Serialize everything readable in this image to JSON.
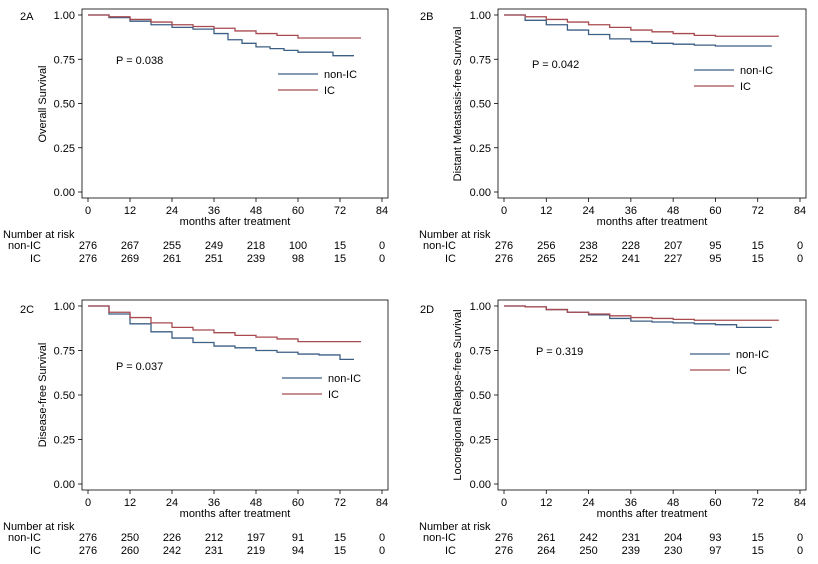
{
  "figure": {
    "colors": {
      "non_ic": "#3c5f86",
      "ic": "#a84a4f",
      "axis": "#000000"
    }
  },
  "risk_table": {
    "header": "Number at risk"
  },
  "chart_data": [
    {
      "type": "line",
      "panel": "2A",
      "ylabel": "Overall Survival",
      "xlabel": "months after treatment",
      "xlim": [
        0,
        84
      ],
      "ylim": [
        0,
        1
      ],
      "xticks": [
        0,
        12,
        24,
        36,
        48,
        60,
        72,
        84
      ],
      "yticks": [
        "0.00",
        "0.25",
        "0.50",
        "0.75",
        "1.00"
      ],
      "p_value": "P = 0.038",
      "legend": [
        "non-IC",
        "IC"
      ],
      "series": [
        {
          "name": "non-IC",
          "x": [
            0,
            6,
            12,
            18,
            24,
            30,
            36,
            40,
            44,
            48,
            52,
            56,
            60,
            66,
            70,
            76
          ],
          "y": [
            1.0,
            0.985,
            0.965,
            0.945,
            0.93,
            0.92,
            0.895,
            0.86,
            0.84,
            0.82,
            0.81,
            0.8,
            0.79,
            0.79,
            0.77,
            0.77
          ]
        },
        {
          "name": "IC",
          "x": [
            0,
            6,
            12,
            18,
            24,
            30,
            36,
            42,
            48,
            54,
            60,
            66,
            72,
            78
          ],
          "y": [
            1.0,
            0.99,
            0.975,
            0.96,
            0.945,
            0.935,
            0.925,
            0.91,
            0.895,
            0.885,
            0.87,
            0.87,
            0.87,
            0.87
          ]
        }
      ],
      "risk": {
        "times": [
          "0",
          "12",
          "24",
          "36",
          "48",
          "60",
          "72",
          "84"
        ],
        "rows": [
          {
            "label": "non-IC",
            "values": [
              "276",
              "267",
              "255",
              "249",
              "218",
              "100",
              "15",
              "0"
            ]
          },
          {
            "label": "IC",
            "values": [
              "276",
              "269",
              "261",
              "251",
              "239",
              "98",
              "15",
              "0"
            ]
          }
        ]
      }
    },
    {
      "type": "line",
      "panel": "2B",
      "ylabel": "Distant Metastasis-free Survival",
      "xlabel": "months after treatment",
      "xlim": [
        0,
        84
      ],
      "ylim": [
        0,
        1
      ],
      "xticks": [
        0,
        12,
        24,
        36,
        48,
        60,
        72,
        84
      ],
      "yticks": [
        "0.00",
        "0.25",
        "0.50",
        "0.75",
        "1.00"
      ],
      "p_value": "P = 0.042",
      "legend": [
        "non-IC",
        "IC"
      ],
      "series": [
        {
          "name": "non-IC",
          "x": [
            0,
            6,
            12,
            18,
            24,
            30,
            36,
            42,
            48,
            54,
            60,
            66,
            72,
            76
          ],
          "y": [
            1.0,
            0.97,
            0.945,
            0.915,
            0.89,
            0.865,
            0.85,
            0.84,
            0.835,
            0.83,
            0.825,
            0.825,
            0.825,
            0.825
          ]
        },
        {
          "name": "IC",
          "x": [
            0,
            6,
            12,
            18,
            24,
            30,
            36,
            42,
            48,
            54,
            60,
            66,
            72,
            78
          ],
          "y": [
            1.0,
            0.99,
            0.975,
            0.96,
            0.945,
            0.93,
            0.915,
            0.905,
            0.895,
            0.885,
            0.88,
            0.88,
            0.88,
            0.88
          ]
        }
      ],
      "risk": {
        "times": [
          "0",
          "12",
          "24",
          "36",
          "48",
          "60",
          "72",
          "84"
        ],
        "rows": [
          {
            "label": "non-IC",
            "values": [
              "276",
              "256",
              "238",
              "228",
              "207",
              "95",
              "15",
              "0"
            ]
          },
          {
            "label": "IC",
            "values": [
              "276",
              "265",
              "252",
              "241",
              "227",
              "95",
              "15",
              "0"
            ]
          }
        ]
      }
    },
    {
      "type": "line",
      "panel": "2C",
      "ylabel": "Disease-free Survival",
      "xlabel": "months after treatment",
      "xlim": [
        0,
        84
      ],
      "ylim": [
        0,
        1
      ],
      "xticks": [
        0,
        12,
        24,
        36,
        48,
        60,
        72,
        84
      ],
      "yticks": [
        "0.00",
        "0.25",
        "0.50",
        "0.75",
        "1.00"
      ],
      "p_value": "P = 0.037",
      "legend": [
        "non-IC",
        "IC"
      ],
      "series": [
        {
          "name": "non-IC",
          "x": [
            0,
            6,
            12,
            18,
            24,
            30,
            36,
            42,
            48,
            54,
            60,
            66,
            72,
            76
          ],
          "y": [
            1.0,
            0.955,
            0.9,
            0.855,
            0.82,
            0.795,
            0.775,
            0.765,
            0.75,
            0.74,
            0.73,
            0.725,
            0.7,
            0.7
          ]
        },
        {
          "name": "IC",
          "x": [
            0,
            6,
            12,
            18,
            24,
            30,
            36,
            42,
            48,
            54,
            60,
            66,
            72,
            78
          ],
          "y": [
            1.0,
            0.965,
            0.935,
            0.905,
            0.88,
            0.865,
            0.85,
            0.835,
            0.825,
            0.815,
            0.8,
            0.8,
            0.8,
            0.8
          ]
        }
      ],
      "risk": {
        "times": [
          "0",
          "12",
          "24",
          "36",
          "48",
          "60",
          "72",
          "84"
        ],
        "rows": [
          {
            "label": "non-IC",
            "values": [
              "276",
              "250",
              "226",
              "212",
              "197",
              "91",
              "15",
              "0"
            ]
          },
          {
            "label": "IC",
            "values": [
              "276",
              "260",
              "242",
              "231",
              "219",
              "94",
              "15",
              "0"
            ]
          }
        ]
      }
    },
    {
      "type": "line",
      "panel": "2D",
      "ylabel": "Locoregional Relapse-free Survival",
      "xlabel": "months after treatment",
      "xlim": [
        0,
        84
      ],
      "ylim": [
        0,
        1
      ],
      "xticks": [
        0,
        12,
        24,
        36,
        48,
        60,
        72,
        84
      ],
      "yticks": [
        "0.00",
        "0.25",
        "0.50",
        "0.75",
        "1.00"
      ],
      "p_value": "P = 0.319",
      "legend": [
        "non-IC",
        "IC"
      ],
      "series": [
        {
          "name": "non-IC",
          "x": [
            0,
            6,
            12,
            18,
            24,
            30,
            36,
            42,
            48,
            54,
            60,
            66,
            72,
            76
          ],
          "y": [
            1.0,
            0.995,
            0.98,
            0.965,
            0.95,
            0.93,
            0.915,
            0.91,
            0.905,
            0.9,
            0.895,
            0.88,
            0.88,
            0.88
          ]
        },
        {
          "name": "IC",
          "x": [
            0,
            6,
            12,
            18,
            24,
            30,
            36,
            42,
            48,
            54,
            60,
            66,
            72,
            78
          ],
          "y": [
            1.0,
            0.995,
            0.98,
            0.965,
            0.955,
            0.945,
            0.935,
            0.93,
            0.925,
            0.92,
            0.92,
            0.92,
            0.92,
            0.92
          ]
        }
      ],
      "risk": {
        "times": [
          "0",
          "12",
          "24",
          "36",
          "48",
          "60",
          "72",
          "84"
        ],
        "rows": [
          {
            "label": "non-IC",
            "values": [
              "276",
              "261",
              "242",
              "231",
              "204",
              "93",
              "15",
              "0"
            ]
          },
          {
            "label": "IC",
            "values": [
              "276",
              "264",
              "250",
              "239",
              "230",
              "97",
              "15",
              "0"
            ]
          }
        ]
      }
    }
  ]
}
